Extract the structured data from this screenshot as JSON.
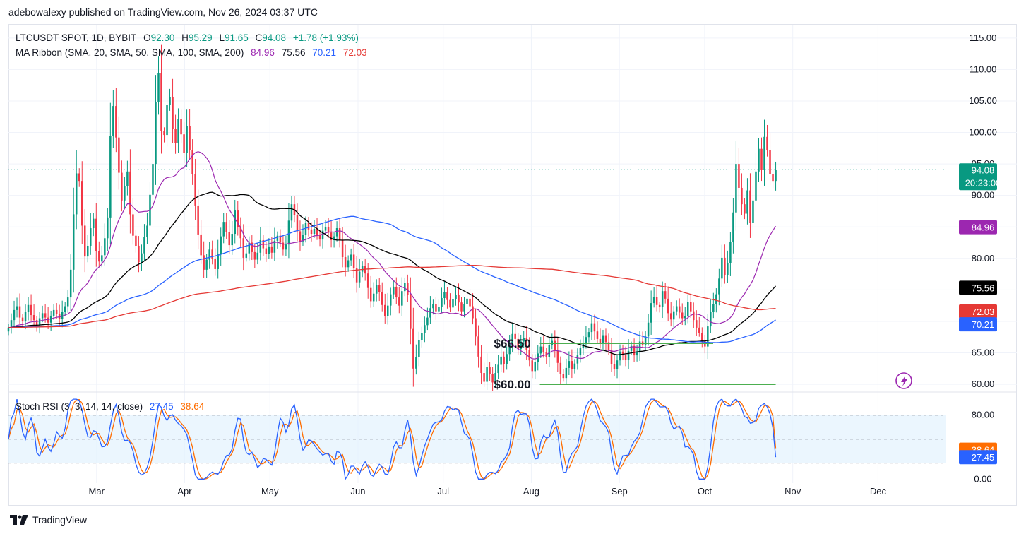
{
  "header": {
    "publisher": "adebowalexy published on TradingView.com, Nov 26, 2024 03:37 UTC"
  },
  "footer": {
    "brand": "TradingView"
  },
  "colors": {
    "up": "#089981",
    "down": "#f23645",
    "ma20": "#9c27b0",
    "ma50": "#000000",
    "ma100": "#2962ff",
    "ma200": "#e53935",
    "stoch_k": "#2962ff",
    "stoch_d": "#ff6d00",
    "support": "#4caf50",
    "grid": "#f0f3fa",
    "band": "#e3f2fd"
  },
  "legend_main": {
    "symbol": "LTCUSDT SPOT, 1D, BYBIT",
    "o_label": "O",
    "o": "92.30",
    "h_label": "H",
    "h": "95.29",
    "l_label": "L",
    "l": "91.65",
    "c_label": "C",
    "c": "94.08",
    "change": "+1.78 (+1.93%)",
    "ma_label": "MA Ribbon (SMA, 20, SMA, 50, SMA, 100, SMA, 200)",
    "ma20": "84.96",
    "ma50": "75.56",
    "ma100": "70.21",
    "ma200": "72.03"
  },
  "legend_stoch": {
    "label": "Stoch RSI (3, 3, 14, 14, close)",
    "k": "27.45",
    "d": "38.64"
  },
  "price_badges": {
    "last": "94.08",
    "countdown": "20:23:00",
    "ma20": "84.96",
    "ma50": "75.56",
    "ma200": "72.03",
    "ma100": "70.21",
    "stoch_d": "38.64",
    "stoch_k": "27.45"
  },
  "annotations": {
    "resistance": "$66.50",
    "support": "$60.00"
  },
  "chart_data": [
    {
      "type": "candlestick",
      "y_ticks": [
        "115.00",
        "110.00",
        "105.00",
        "100.00",
        "95.00",
        "90.00",
        "85.00",
        "80.00",
        "75.00",
        "70.00",
        "65.00",
        "60.00"
      ],
      "ylim": [
        59,
        117
      ],
      "x_ticks": [
        {
          "label": "Mar",
          "day": 31
        },
        {
          "label": "Apr",
          "day": 62
        },
        {
          "label": "May",
          "day": 92
        },
        {
          "label": "Jun",
          "day": 123
        },
        {
          "label": "Jul",
          "day": 153
        },
        {
          "label": "Aug",
          "day": 184
        },
        {
          "label": "Sep",
          "day": 215
        },
        {
          "label": "Oct",
          "day": 245
        },
        {
          "label": "Nov",
          "day": 276
        },
        {
          "label": "Dec",
          "day": 306
        }
      ],
      "x_range_days": [
        0,
        330
      ],
      "candles_close": [
        69.0,
        70.2,
        71.8,
        72.4,
        70.6,
        70.0,
        71.5,
        72.6,
        71.0,
        70.2,
        69.4,
        70.5,
        71.3,
        70.6,
        69.8,
        70.9,
        71.8,
        71.2,
        70.4,
        71.5,
        72.4,
        73.8,
        78.2,
        87.0,
        93.5,
        92.3,
        85.2,
        80.3,
        82.0,
        84.8,
        86.3,
        81.2,
        79.5,
        80.5,
        83.2,
        86.5,
        99.5,
        104.2,
        99.2,
        93.6,
        89.2,
        91.5,
        93.8,
        87.0,
        83.6,
        82.0,
        79.4,
        80.8,
        83.4,
        85.2,
        90.1,
        95.0,
        104.8,
        109.4,
        100.2,
        99.6,
        104.4,
        105.6,
        100.6,
        98.3,
        102.1,
        99.7,
        96.8,
        101.0,
        97.2,
        93.4,
        88.4,
        83.8,
        80.5,
        78.2,
        79.8,
        81.4,
        79.9,
        78.3,
        80.7,
        83.5,
        85.8,
        84.2,
        82.1,
        83.9,
        87.6,
        85.0,
        83.2,
        80.1,
        80.8,
        82.5,
        81.0,
        79.8,
        80.9,
        82.9,
        81.6,
        80.7,
        81.9,
        80.9,
        82.8,
        83.6,
        82.5,
        81.4,
        82.2,
        86.0,
        88.6,
        86.9,
        84.3,
        82.7,
        83.7,
        85.6,
        84.6,
        83.9,
        84.7,
        83.8,
        83.0,
        84.4,
        85.0,
        84.1,
        82.9,
        83.5,
        84.8,
        82.9,
        80.2,
        78.6,
        79.7,
        80.6,
        78.4,
        76.2,
        77.9,
        78.8,
        77.6,
        75.3,
        73.2,
        74.4,
        75.8,
        74.6,
        72.6,
        70.8,
        72.5,
        74.3,
        75.5,
        73.8,
        72.5,
        74.8,
        76.1,
        74.2,
        68.8,
        62.5,
        64.3,
        67.0,
        68.1,
        69.4,
        70.6,
        72.1,
        72.8,
        71.6,
        72.3,
        73.7,
        74.6,
        73.4,
        72.2,
        73.5,
        74.2,
        73.0,
        71.6,
        72.8,
        73.6,
        72.4,
        70.5,
        67.6,
        64.4,
        61.8,
        60.4,
        62.7,
        61.6,
        60.3,
        61.8,
        63.1,
        64.4,
        63.2,
        64.8,
        66.4,
        68.0,
        67.2,
        65.6,
        66.8,
        67.4,
        65.5,
        63.8,
        62.1,
        63.6,
        64.9,
        66.0,
        65.1,
        64.3,
        66.2,
        66.9,
        65.3,
        63.4,
        61.6,
        61.0,
        62.6,
        63.7,
        62.4,
        63.3,
        64.6,
        65.8,
        66.4,
        67.5,
        68.3,
        69.7,
        68.4,
        67.2,
        66.5,
        67.8,
        66.7,
        65.4,
        63.2,
        62.4,
        63.8,
        65.2,
        64.6,
        63.9,
        65.3,
        66.1,
        64.6,
        65.2,
        66.8,
        66.3,
        67.6,
        69.8,
        72.9,
        73.9,
        72.6,
        72.3,
        74.8,
        73.6,
        71.3,
        70.3,
        71.6,
        72.4,
        71.4,
        70.5,
        70.8,
        73.1,
        71.6,
        70.2,
        69.0,
        68.2,
        66.9,
        66.0,
        69.2,
        71.5,
        72.7,
        74.3,
        76.8,
        80.1,
        77.4,
        79.2,
        82.6,
        87.3,
        95.0,
        91.2,
        88.6,
        87.1,
        90.8,
        85.6,
        89.2,
        93.8,
        97.4,
        94.1,
        99.3,
        97.2,
        93.4,
        92.3,
        94.08
      ],
      "ma_last": {
        "sma20": 84.96,
        "sma50": 75.56,
        "sma100": 70.21,
        "sma200": 72.03
      },
      "support_lines": [
        {
          "label": "$66.50",
          "value": 66.5
        },
        {
          "label": "$60.00",
          "value": 60.0
        }
      ]
    },
    {
      "type": "line",
      "name": "Stoch RSI",
      "y_ticks": [
        "80.00",
        "0.00"
      ],
      "ylim": [
        -5,
        108
      ],
      "bands": [
        20,
        50,
        80
      ],
      "last": {
        "k": 27.45,
        "d": 38.64
      }
    }
  ]
}
